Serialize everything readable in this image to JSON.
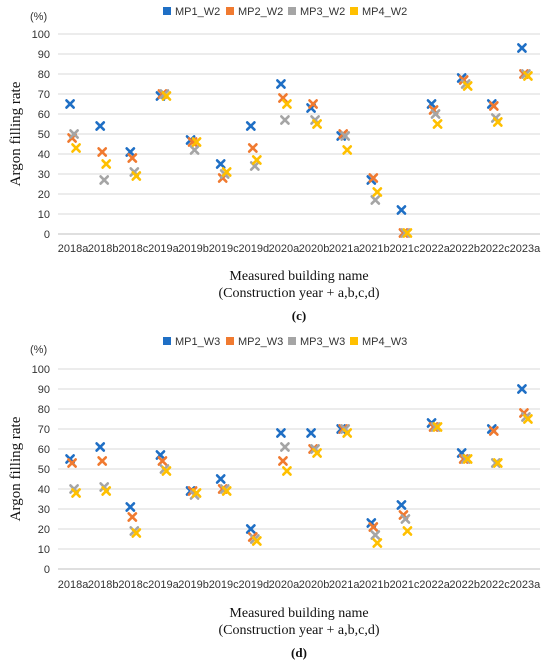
{
  "chart_data": [
    {
      "type": "scatter",
      "panel_label": "(c)",
      "unit_label": "(%)",
      "ylabel": "Argon filling rate",
      "xlabel": "Measured building name",
      "xlabel_sub": "(Construction year + a,b,c,d)",
      "ylim": [
        0,
        100
      ],
      "yticks": [
        0,
        10,
        20,
        30,
        40,
        50,
        60,
        70,
        80,
        90,
        100
      ],
      "grid": true,
      "legend": "top",
      "categories": [
        "2018a",
        "2018b",
        "2018c",
        "2019a",
        "2019b",
        "2019c",
        "2019d",
        "2020a",
        "2020b",
        "2021a",
        "2021b",
        "2021c",
        "2022a",
        "2022b",
        "2022c",
        "2023a"
      ],
      "series": [
        {
          "name": "MP1_W2",
          "color": "#1f6fc5",
          "values": [
            65,
            54,
            41,
            69,
            47,
            35,
            54,
            75,
            63,
            49,
            27,
            12,
            65,
            78,
            65,
            93
          ]
        },
        {
          "name": "MP2_W2",
          "color": "#f07a30",
          "values": [
            48,
            41,
            38,
            70,
            46,
            28,
            43,
            68,
            65,
            50,
            28,
            0.5,
            62,
            77,
            64,
            80
          ]
        },
        {
          "name": "MP3_W2",
          "color": "#a5a5a5",
          "values": [
            50,
            27,
            31,
            70,
            42,
            30,
            34,
            57,
            57,
            49,
            17,
            0.5,
            60,
            75,
            58,
            80
          ]
        },
        {
          "name": "MP4_W2",
          "color": "#ffc000",
          "values": [
            43,
            35,
            29,
            69,
            46,
            31,
            37,
            65,
            55,
            42,
            21,
            0.5,
            55,
            74,
            56,
            79
          ]
        }
      ]
    },
    {
      "type": "scatter",
      "panel_label": "(d)",
      "unit_label": "(%)",
      "ylabel": "Argon filling rate",
      "xlabel": "Measured building name",
      "xlabel_sub": "(Construction year + a,b,c,d)",
      "ylim": [
        0,
        100
      ],
      "yticks": [
        0,
        10,
        20,
        30,
        40,
        50,
        60,
        70,
        80,
        90,
        100
      ],
      "grid": true,
      "legend": "top",
      "categories": [
        "2018a",
        "2018b",
        "2018c",
        "2019a",
        "2019b",
        "2019c",
        "2019d",
        "2020a",
        "2020b",
        "2021a",
        "2021b",
        "2021c",
        "2022a",
        "2022b",
        "2022c",
        "2023a"
      ],
      "series": [
        {
          "name": "MP1_W3",
          "color": "#1f6fc5",
          "values": [
            55,
            61,
            31,
            57,
            39,
            45,
            20,
            68,
            68,
            70,
            23,
            32,
            73,
            58,
            70,
            90
          ]
        },
        {
          "name": "MP2_W3",
          "color": "#f07a30",
          "values": [
            53,
            54,
            26,
            54,
            39,
            40,
            16,
            54,
            60,
            70,
            21,
            27,
            71,
            55,
            69,
            78
          ]
        },
        {
          "name": "MP3_W3",
          "color": "#a5a5a5",
          "values": [
            40,
            41,
            19,
            50,
            37,
            40,
            15,
            61,
            60,
            70,
            17,
            25,
            71,
            55,
            53,
            76
          ]
        },
        {
          "name": "MP4_W3",
          "color": "#ffc000",
          "values": [
            38,
            39,
            18,
            49,
            38,
            39,
            14,
            49,
            58,
            68,
            13,
            19,
            71,
            55,
            53,
            75
          ]
        }
      ]
    }
  ]
}
